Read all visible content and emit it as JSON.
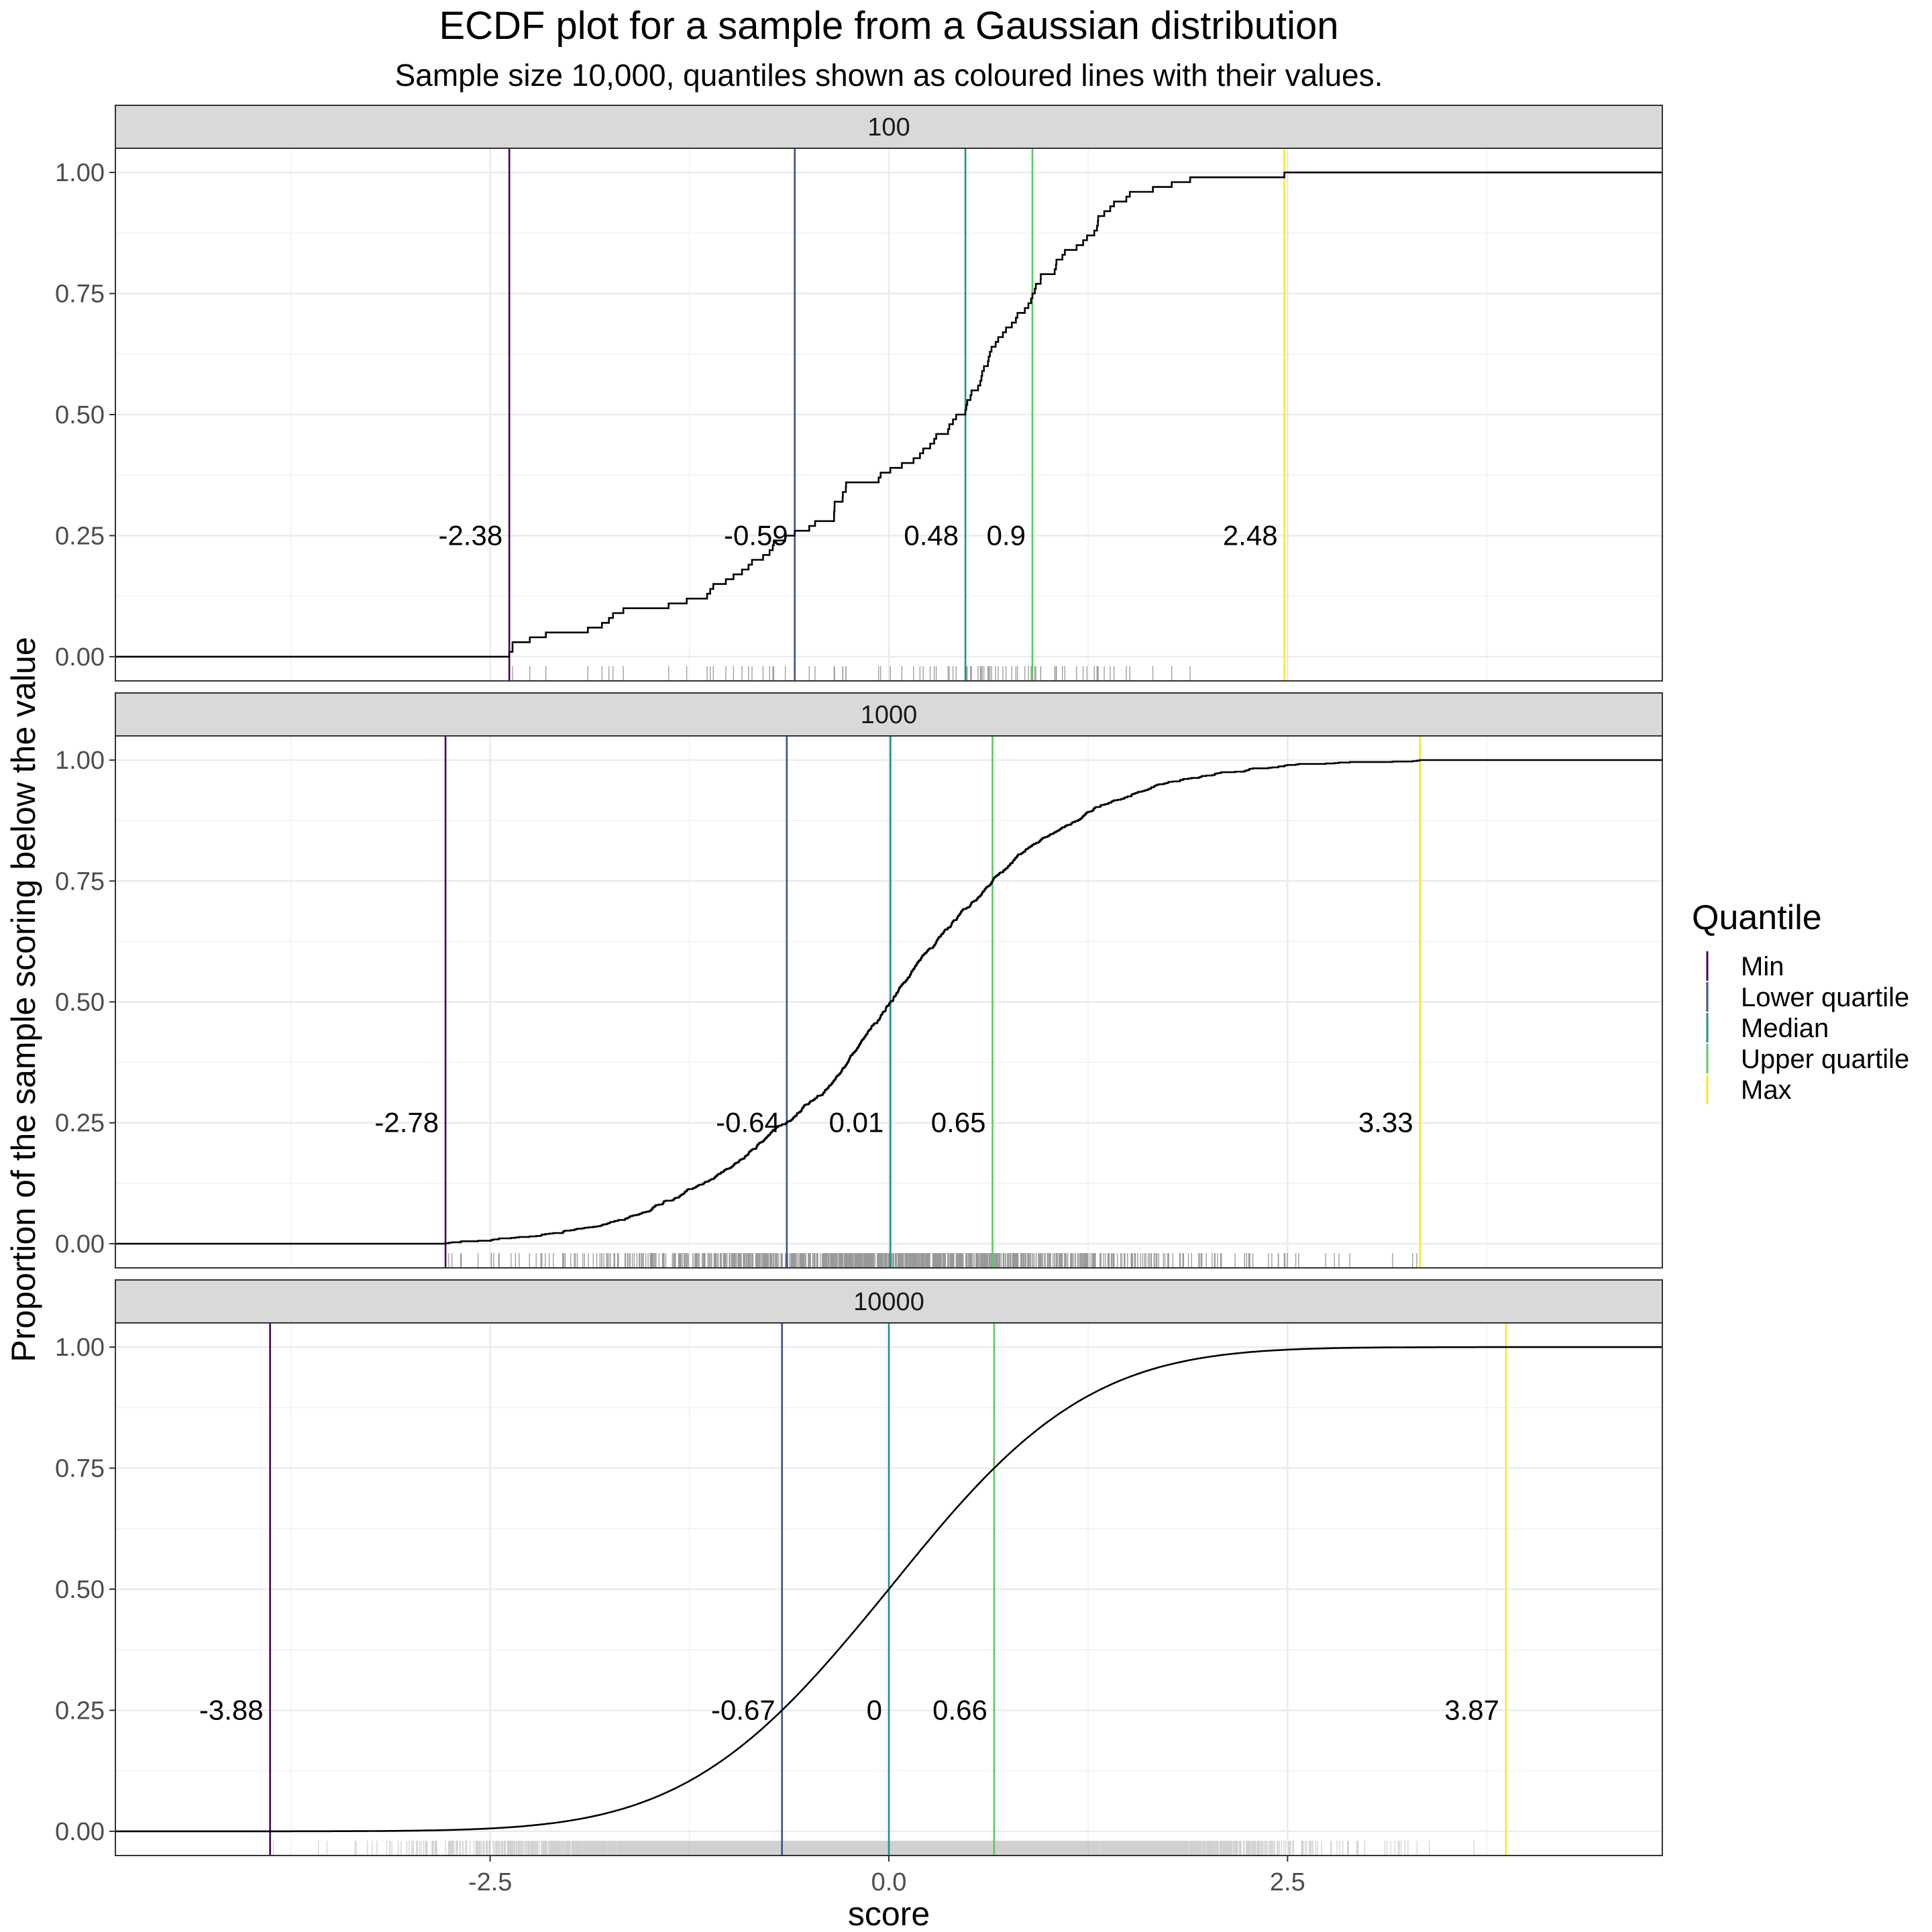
{
  "chart_data": {
    "type": "line",
    "title": "ECDF plot for a sample from a Gaussian distribution",
    "subtitle": "Sample size 10,000, quantiles shown as coloured lines with their values.",
    "xlabel": "score",
    "ylabel": "Proportion of the sample scoring below the value",
    "xlim": [
      -4.85,
      4.85
    ],
    "ylim": [
      -0.05,
      1.05
    ],
    "x_ticks": [
      -2.5,
      0.0,
      2.5
    ],
    "x_tick_labels": [
      "-2.5",
      "0.0",
      "2.5"
    ],
    "y_ticks": [
      0,
      0.25,
      0.5,
      0.75,
      1.0
    ],
    "y_tick_labels": [
      "0.00",
      "0.25",
      "0.50",
      "0.75",
      "1.00"
    ],
    "grid": true,
    "legend": {
      "title": "Quantile",
      "position": "right",
      "entries": [
        {
          "name": "Min",
          "color": "#440154"
        },
        {
          "name": "Lower quartile",
          "color": "#3B528B"
        },
        {
          "name": "Median",
          "color": "#21908C"
        },
        {
          "name": "Upper quartile",
          "color": "#5DC863"
        },
        {
          "name": "Max",
          "color": "#FDE725"
        }
      ]
    },
    "panels": [
      {
        "facet": "100",
        "n": 100,
        "quantiles": [
          {
            "name": "Min",
            "value": -2.38,
            "label": "-2.38"
          },
          {
            "name": "Lower quartile",
            "value": -0.59,
            "label": "-0.59"
          },
          {
            "name": "Median",
            "value": 0.48,
            "label": "0.48"
          },
          {
            "name": "Upper quartile",
            "value": 0.9,
            "label": "0.9"
          },
          {
            "name": "Max",
            "value": 2.48,
            "label": "2.48"
          }
        ]
      },
      {
        "facet": "1000",
        "n": 1000,
        "quantiles": [
          {
            "name": "Min",
            "value": -2.78,
            "label": "-2.78"
          },
          {
            "name": "Lower quartile",
            "value": -0.64,
            "label": "-0.64"
          },
          {
            "name": "Median",
            "value": 0.01,
            "label": "0.01"
          },
          {
            "name": "Upper quartile",
            "value": 0.65,
            "label": "0.65"
          },
          {
            "name": "Max",
            "value": 3.33,
            "label": "3.33"
          }
        ]
      },
      {
        "facet": "10000",
        "n": 10000,
        "quantiles": [
          {
            "name": "Min",
            "value": -3.88,
            "label": "-3.88"
          },
          {
            "name": "Lower quartile",
            "value": -0.67,
            "label": "-0.67"
          },
          {
            "name": "Median",
            "value": 0,
            "label": "0"
          },
          {
            "name": "Upper quartile",
            "value": 0.66,
            "label": "0.66"
          },
          {
            "name": "Max",
            "value": 3.87,
            "label": "3.87"
          }
        ]
      }
    ]
  }
}
